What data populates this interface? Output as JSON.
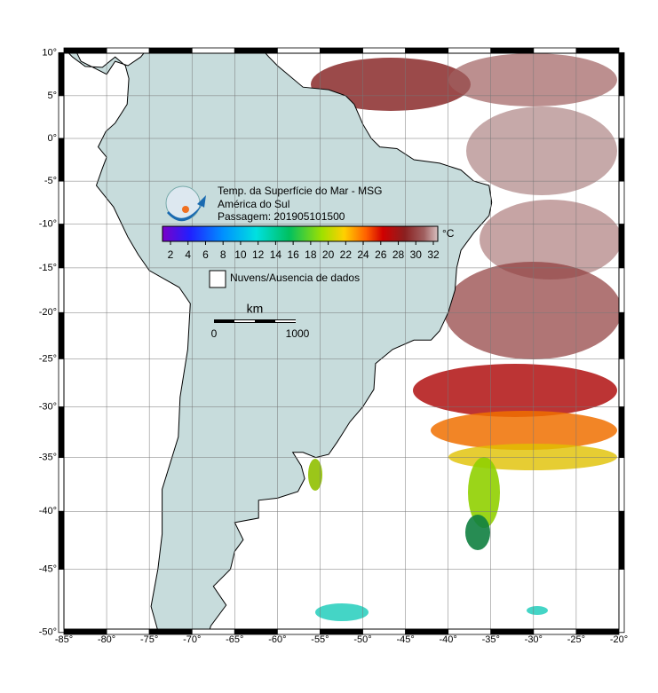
{
  "header": {
    "title": "Temp. da Superfície do Mar - MSG",
    "region": "América do Sul",
    "pass": "Passagem: 201905101500"
  },
  "colorbar": {
    "ticks": [
      2,
      4,
      6,
      8,
      10,
      12,
      14,
      16,
      18,
      20,
      22,
      24,
      26,
      28,
      30,
      32
    ],
    "unit": "°C"
  },
  "legend": {
    "label": "Nuvens/Ausencia de dados"
  },
  "scale_bar": {
    "unit": "km",
    "start": 0,
    "end": 1000
  },
  "map": {
    "lon_ticks": [
      {
        "value": -85,
        "label": "-85°"
      },
      {
        "value": -80,
        "label": "-80°"
      },
      {
        "value": -75,
        "label": "-75°"
      },
      {
        "value": -70,
        "label": "-70°"
      },
      {
        "value": -65,
        "label": "-65°"
      },
      {
        "value": -60,
        "label": "-60°"
      },
      {
        "value": -55,
        "label": "-55°"
      },
      {
        "value": -50,
        "label": "-50°"
      },
      {
        "value": -45,
        "label": "-45°"
      },
      {
        "value": -40,
        "label": "-40°"
      },
      {
        "value": -35,
        "label": "-35°"
      },
      {
        "value": -30,
        "label": "-30°"
      },
      {
        "value": -25,
        "label": "-25°"
      },
      {
        "value": -20,
        "label": "-20°"
      }
    ],
    "lat_ticks": [
      {
        "value": 10,
        "label": "10°"
      },
      {
        "value": 5,
        "label": "5°"
      },
      {
        "value": 0,
        "label": "0°"
      },
      {
        "value": -5,
        "label": "-5°"
      },
      {
        "value": -10,
        "label": "-10°"
      },
      {
        "value": -15,
        "label": "-15°"
      },
      {
        "value": -20,
        "label": "-20°"
      },
      {
        "value": -25,
        "label": "-25°"
      },
      {
        "value": -30,
        "label": "-30°"
      },
      {
        "value": -35,
        "label": "-35°"
      },
      {
        "value": -40,
        "label": "-40°"
      },
      {
        "value": -45,
        "label": "-45°"
      },
      {
        "value": -50,
        "label": "-50°"
      }
    ]
  }
}
